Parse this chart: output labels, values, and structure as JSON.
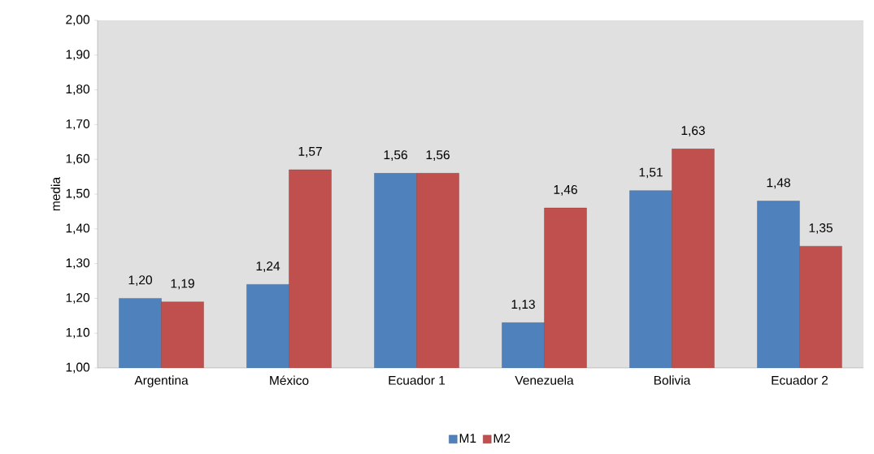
{
  "chart_data": {
    "type": "bar",
    "ylabel": "media",
    "categories": [
      "Argentina",
      "México",
      "Ecuador 1",
      "Venezuela",
      "Bolivia",
      "Ecuador 2"
    ],
    "series": [
      {
        "name": "M1",
        "color": "#4f81bd",
        "values": [
          1.2,
          1.24,
          1.56,
          1.13,
          1.51,
          1.48
        ],
        "value_labels": [
          "1,20",
          "1,24",
          "1,56",
          "1,13",
          "1,51",
          "1,48"
        ]
      },
      {
        "name": "M2",
        "color": "#c0504d",
        "values": [
          1.19,
          1.57,
          1.56,
          1.46,
          1.63,
          1.35
        ],
        "value_labels": [
          "1,19",
          "1,57",
          "1,56",
          "1,46",
          "1,63",
          "1,35"
        ]
      }
    ],
    "ylim": [
      1.0,
      2.0
    ],
    "yticks": [
      {
        "value": 1.0,
        "label": "1,00"
      },
      {
        "value": 1.1,
        "label": "1,10"
      },
      {
        "value": 1.2,
        "label": "1,20"
      },
      {
        "value": 1.3,
        "label": "1,30"
      },
      {
        "value": 1.4,
        "label": "1,40"
      },
      {
        "value": 1.5,
        "label": "1,50"
      },
      {
        "value": 1.6,
        "label": "1,60"
      },
      {
        "value": 1.7,
        "label": "1,70"
      },
      {
        "value": 1.8,
        "label": "1,80"
      },
      {
        "value": 1.9,
        "label": "1,90"
      },
      {
        "value": 2.0,
        "label": "2,00"
      }
    ],
    "grid": false,
    "legend": "bottom"
  }
}
